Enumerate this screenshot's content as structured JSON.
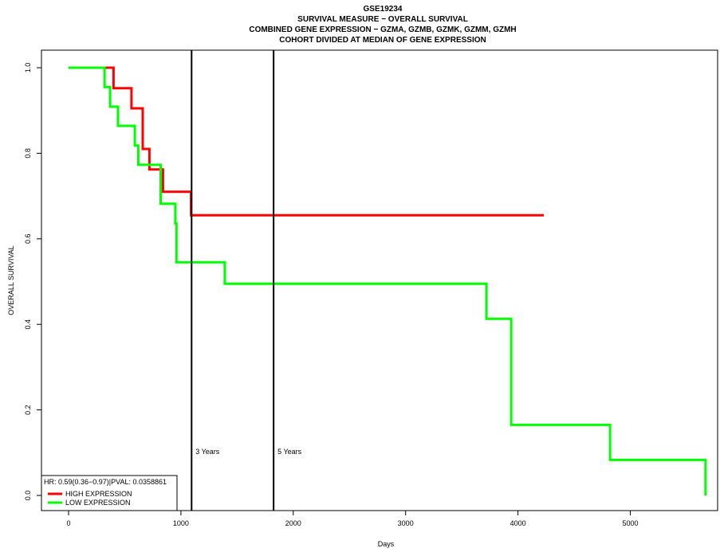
{
  "chart_data": {
    "type": "line",
    "title": [
      "GSE19234",
      "SURVIVAL MEASURE −  OVERALL SURVIVAL",
      "COMBINED GENE EXPRESSION −  GZMA, GZMB, GZMK, GZMM, GZMH",
      "COHORT DIVIDED AT MEDIAN OF GENE EXPRESSION"
    ],
    "xlabel": "Days",
    "ylabel": "OVERALL SURVIVAL",
    "xlim": [
      -250,
      5700
    ],
    "ylim": [
      -0.03,
      1.05
    ],
    "x_ticks": [
      0,
      1000,
      2000,
      3000,
      4000,
      5000
    ],
    "y_ticks": [
      0.0,
      0.2,
      0.4,
      0.6,
      0.8,
      1.0
    ],
    "y_tick_labels": [
      "0.0",
      "0.2",
      "0.4",
      "0.6",
      "0.8",
      "1.0"
    ],
    "grid": false,
    "legend_position": "bottom-left",
    "legend_header": "HR: 0.59(0.36−0.97)|PVAL: 0.0358861",
    "series": [
      {
        "name": "HIGH EXPRESSION",
        "color": "#ff0000",
        "step": true,
        "x": [
          330,
          400,
          560,
          660,
          720,
          840,
          1090,
          4230
        ],
        "y": [
          1.0,
          0.952,
          0.905,
          0.81,
          0.762,
          0.71,
          0.655,
          0.655
        ]
      },
      {
        "name": "LOW EXPRESSION",
        "color": "#00ff00",
        "step": true,
        "x": [
          0,
          320,
          370,
          440,
          590,
          620,
          820,
          950,
          960,
          1390,
          3720,
          3940,
          4820,
          5670,
          5670
        ],
        "y": [
          1.0,
          0.955,
          0.909,
          0.864,
          0.818,
          0.773,
          0.682,
          0.636,
          0.545,
          0.495,
          0.413,
          0.165,
          0.083,
          0.083,
          0.0
        ]
      }
    ],
    "vlines": [
      {
        "x": 1095,
        "label": "3 Years"
      },
      {
        "x": 1825,
        "label": "5 Years"
      }
    ]
  }
}
